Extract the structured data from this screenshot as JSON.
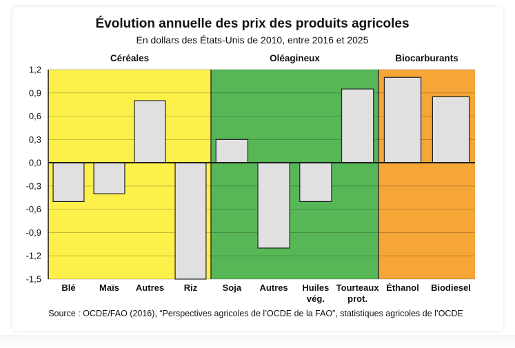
{
  "chart_data": {
    "type": "bar",
    "title": "Évolution annuelle des prix des produits agricoles",
    "subtitle": "En dollars des États-Unis de 2010, entre 2016 et 2025",
    "source": "Source : OCDE/FAO (2016), “Perspectives agricoles de l’OCDE de la FAO”, statistiques agricoles de l’OCDE",
    "xlabel": "",
    "ylabel": "",
    "ylim": [
      -1.5,
      1.2
    ],
    "yticks": [
      "1,2",
      "0,9",
      "0,6",
      "0,3",
      "0,0",
      "-0,3",
      "-0,6",
      "-0,9",
      "-1,2",
      "-1,5"
    ],
    "grid": true,
    "groups": [
      {
        "name": "Céréales",
        "color": "#fdf04a",
        "categories": [
          [
            "Blé"
          ],
          [
            "Maïs"
          ],
          [
            "Autres"
          ],
          [
            "Riz"
          ]
        ],
        "values": [
          -0.5,
          -0.4,
          0.8,
          -1.5
        ]
      },
      {
        "name": "Oléagineux",
        "color": "#57b757",
        "categories": [
          [
            "Soja"
          ],
          [
            "Autres"
          ],
          [
            "Huiles",
            "vég."
          ],
          [
            "Tourteaux",
            "prot."
          ]
        ],
        "values": [
          0.3,
          -1.1,
          -0.5,
          0.95
        ]
      },
      {
        "name": "Biocarburants",
        "color": "#f6a637",
        "categories": [
          [
            "Éthanol"
          ],
          [
            "Biodiesel"
          ]
        ],
        "values": [
          1.1,
          0.85
        ]
      }
    ],
    "bar_color": "#e0e0e0"
  }
}
